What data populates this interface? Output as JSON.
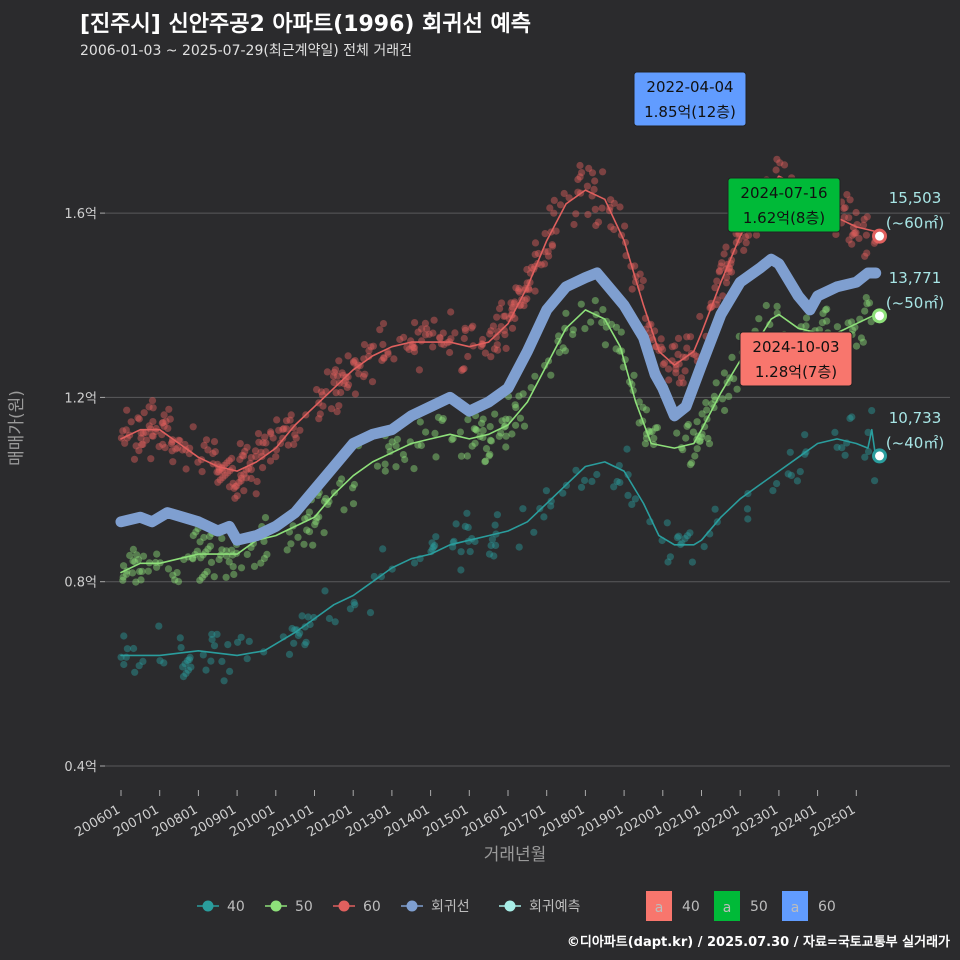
{
  "header": {
    "title": "[진주시] 신안주공2 아파트(1996) 회귀선 예측",
    "subtitle": "2006-01-03 ~ 2025-07-29(최근계약일) 전체 거래건"
  },
  "caption": "©디아파트(dapt.kr) / 2025.07.30 / 자료=국토교통부 실거래가",
  "colors": {
    "s40": "#2a9d9d",
    "s50": "#8ee07a",
    "s60": "#e0605e",
    "regression": "#7f9fd0",
    "forecast": "#a8eee8",
    "ann40": "#f8766d",
    "ann50": "#00ba38",
    "ann60": "#619cff"
  },
  "chart_data": {
    "type": "line",
    "xlabel": "거래년월",
    "ylabel": "매매가(원)",
    "x_ticks": [
      "200601",
      "200701",
      "200801",
      "200901",
      "201001",
      "201101",
      "201201",
      "201301",
      "201401",
      "201501",
      "201601",
      "201701",
      "201801",
      "201901",
      "202001",
      "202101",
      "202201",
      "202301",
      "202401",
      "202501"
    ],
    "y_ticks": [
      {
        "value": 0.4,
        "label": "0.4억"
      },
      {
        "value": 0.8,
        "label": "0.8억"
      },
      {
        "value": 1.2,
        "label": "1.2억"
      },
      {
        "value": 1.6,
        "label": "1.6억"
      }
    ],
    "ylim": [
      0.33,
      1.85
    ],
    "xlim": [
      2005.5,
      2026.3
    ],
    "grid": true,
    "series": [
      {
        "name": "40",
        "key": "s40",
        "points": [
          [
            2006.0,
            0.64
          ],
          [
            2007.0,
            0.64
          ],
          [
            2008.0,
            0.65
          ],
          [
            2009.0,
            0.64
          ],
          [
            2009.7,
            0.65
          ],
          [
            2010.5,
            0.69
          ],
          [
            2011.0,
            0.72
          ],
          [
            2011.5,
            0.75
          ],
          [
            2012.0,
            0.77
          ],
          [
            2012.5,
            0.8
          ],
          [
            2013.0,
            0.83
          ],
          [
            2013.5,
            0.85
          ],
          [
            2014.0,
            0.86
          ],
          [
            2014.5,
            0.88
          ],
          [
            2015.0,
            0.89
          ],
          [
            2015.5,
            0.9
          ],
          [
            2016.0,
            0.91
          ],
          [
            2016.5,
            0.93
          ],
          [
            2017.0,
            0.97
          ],
          [
            2017.5,
            1.01
          ],
          [
            2018.0,
            1.05
          ],
          [
            2018.5,
            1.06
          ],
          [
            2019.0,
            1.04
          ],
          [
            2019.5,
            0.97
          ],
          [
            2019.9,
            0.9
          ],
          [
            2020.3,
            0.88
          ],
          [
            2020.8,
            0.88
          ],
          [
            2021.0,
            0.89
          ],
          [
            2021.5,
            0.94
          ],
          [
            2022.0,
            0.98
          ],
          [
            2022.5,
            1.01
          ],
          [
            2023.0,
            1.04
          ],
          [
            2023.5,
            1.07
          ],
          [
            2024.0,
            1.1
          ],
          [
            2024.5,
            1.11
          ],
          [
            2025.0,
            1.1
          ],
          [
            2025.3,
            1.09
          ],
          [
            2025.4,
            1.13
          ],
          [
            2025.5,
            1.07
          ]
        ]
      },
      {
        "name": "50",
        "key": "s50",
        "points": [
          [
            2006.0,
            0.82
          ],
          [
            2006.5,
            0.84
          ],
          [
            2007.0,
            0.84
          ],
          [
            2007.5,
            0.85
          ],
          [
            2008.0,
            0.86
          ],
          [
            2008.5,
            0.86
          ],
          [
            2009.0,
            0.86
          ],
          [
            2009.5,
            0.89
          ],
          [
            2010.0,
            0.9
          ],
          [
            2010.5,
            0.92
          ],
          [
            2011.0,
            0.94
          ],
          [
            2011.5,
            0.99
          ],
          [
            2012.0,
            1.03
          ],
          [
            2012.5,
            1.06
          ],
          [
            2013.0,
            1.08
          ],
          [
            2013.5,
            1.1
          ],
          [
            2014.0,
            1.11
          ],
          [
            2014.5,
            1.12
          ],
          [
            2015.0,
            1.11
          ],
          [
            2015.5,
            1.12
          ],
          [
            2016.0,
            1.14
          ],
          [
            2016.5,
            1.19
          ],
          [
            2017.0,
            1.27
          ],
          [
            2017.5,
            1.35
          ],
          [
            2018.0,
            1.39
          ],
          [
            2018.5,
            1.37
          ],
          [
            2018.9,
            1.31
          ],
          [
            2019.3,
            1.19
          ],
          [
            2019.7,
            1.1
          ],
          [
            2020.3,
            1.09
          ],
          [
            2020.8,
            1.1
          ],
          [
            2021.0,
            1.13
          ],
          [
            2021.5,
            1.21
          ],
          [
            2022.0,
            1.28
          ],
          [
            2022.5,
            1.33
          ],
          [
            2022.8,
            1.37
          ],
          [
            2023.0,
            1.38
          ],
          [
            2023.5,
            1.35
          ],
          [
            2024.0,
            1.34
          ],
          [
            2024.5,
            1.34
          ],
          [
            2025.0,
            1.36
          ],
          [
            2025.5,
            1.38
          ]
        ]
      },
      {
        "name": "60",
        "key": "s60",
        "points": [
          [
            2006.0,
            1.11
          ],
          [
            2006.5,
            1.13
          ],
          [
            2007.0,
            1.13
          ],
          [
            2007.5,
            1.1
          ],
          [
            2008.0,
            1.07
          ],
          [
            2008.5,
            1.05
          ],
          [
            2009.0,
            1.04
          ],
          [
            2009.5,
            1.06
          ],
          [
            2010.0,
            1.09
          ],
          [
            2010.5,
            1.14
          ],
          [
            2011.0,
            1.18
          ],
          [
            2011.5,
            1.22
          ],
          [
            2012.0,
            1.26
          ],
          [
            2012.5,
            1.29
          ],
          [
            2013.0,
            1.31
          ],
          [
            2013.5,
            1.32
          ],
          [
            2014.0,
            1.32
          ],
          [
            2014.5,
            1.32
          ],
          [
            2015.0,
            1.31
          ],
          [
            2015.5,
            1.32
          ],
          [
            2016.0,
            1.36
          ],
          [
            2016.5,
            1.44
          ],
          [
            2017.0,
            1.54
          ],
          [
            2017.5,
            1.62
          ],
          [
            2018.0,
            1.65
          ],
          [
            2018.5,
            1.63
          ],
          [
            2019.0,
            1.54
          ],
          [
            2019.5,
            1.4
          ],
          [
            2019.9,
            1.3
          ],
          [
            2020.3,
            1.27
          ],
          [
            2020.8,
            1.3
          ],
          [
            2021.0,
            1.34
          ],
          [
            2021.5,
            1.45
          ],
          [
            2022.0,
            1.55
          ],
          [
            2022.5,
            1.63
          ],
          [
            2023.0,
            1.68
          ],
          [
            2023.5,
            1.66
          ],
          [
            2024.0,
            1.62
          ],
          [
            2024.5,
            1.59
          ],
          [
            2025.0,
            1.57
          ],
          [
            2025.5,
            1.56
          ]
        ]
      },
      {
        "name": "회귀선",
        "key": "regression",
        "points": [
          [
            2006.0,
            0.93
          ],
          [
            2006.5,
            0.94
          ],
          [
            2006.8,
            0.93
          ],
          [
            2007.2,
            0.95
          ],
          [
            2007.6,
            0.94
          ],
          [
            2008.0,
            0.93
          ],
          [
            2008.5,
            0.91
          ],
          [
            2008.8,
            0.92
          ],
          [
            2009.0,
            0.89
          ],
          [
            2009.5,
            0.9
          ],
          [
            2010.0,
            0.92
          ],
          [
            2010.5,
            0.95
          ],
          [
            2011.0,
            1.0
          ],
          [
            2011.5,
            1.05
          ],
          [
            2012.0,
            1.1
          ],
          [
            2012.5,
            1.12
          ],
          [
            2013.0,
            1.13
          ],
          [
            2013.5,
            1.16
          ],
          [
            2014.0,
            1.18
          ],
          [
            2014.5,
            1.2
          ],
          [
            2015.0,
            1.17
          ],
          [
            2015.5,
            1.19
          ],
          [
            2016.0,
            1.22
          ],
          [
            2016.5,
            1.3
          ],
          [
            2017.0,
            1.39
          ],
          [
            2017.5,
            1.44
          ],
          [
            2018.0,
            1.46
          ],
          [
            2018.3,
            1.47
          ],
          [
            2018.7,
            1.43
          ],
          [
            2019.0,
            1.4
          ],
          [
            2019.5,
            1.33
          ],
          [
            2019.8,
            1.25
          ],
          [
            2020.0,
            1.22
          ],
          [
            2020.3,
            1.16
          ],
          [
            2020.6,
            1.18
          ],
          [
            2021.0,
            1.27
          ],
          [
            2021.5,
            1.38
          ],
          [
            2022.0,
            1.45
          ],
          [
            2022.5,
            1.48
          ],
          [
            2022.8,
            1.5
          ],
          [
            2023.0,
            1.49
          ],
          [
            2023.5,
            1.42
          ],
          [
            2023.8,
            1.39
          ],
          [
            2024.0,
            1.42
          ],
          [
            2024.5,
            1.44
          ],
          [
            2025.0,
            1.45
          ],
          [
            2025.3,
            1.47
          ],
          [
            2025.5,
            1.47
          ]
        ]
      }
    ],
    "forecast_points": [
      {
        "series": "60",
        "x": 2025.6,
        "y": 1.55,
        "label": "15,503",
        "sub": "(~60㎡)"
      },
      {
        "series": "50",
        "x": 2025.6,
        "y": 1.377,
        "label": "13,771",
        "sub": "(~50㎡)"
      },
      {
        "series": "40",
        "x": 2025.6,
        "y": 1.073,
        "label": "10,733",
        "sub": "(~40㎡)"
      }
    ],
    "annotations": [
      {
        "date": "2022-04-04",
        "price": "1.85억(12층)",
        "color_key": "ann60",
        "x": 2022.26,
        "y": 1.85
      },
      {
        "date": "2024-07-16",
        "price": "1.62억(8층)",
        "color_key": "ann50",
        "x": 2024.54,
        "y": 1.62
      },
      {
        "date": "2024-10-03",
        "price": "1.28억(7층)",
        "color_key": "ann40",
        "x": 2024.75,
        "y": 1.28
      }
    ],
    "legend": {
      "items": [
        {
          "label": "40",
          "key": "s40"
        },
        {
          "label": "50",
          "key": "s50"
        },
        {
          "label": "60",
          "key": "s60"
        },
        {
          "label": "회귀선",
          "key": "regression"
        },
        {
          "label": "회귀예측",
          "key": "forecast"
        }
      ],
      "box_items": [
        {
          "glyph": "a",
          "label": "40",
          "key": "ann40"
        },
        {
          "glyph": "a",
          "label": "50",
          "key": "ann50"
        },
        {
          "glyph": "a",
          "label": "60",
          "key": "ann60"
        }
      ],
      "placement": "bottom"
    }
  }
}
